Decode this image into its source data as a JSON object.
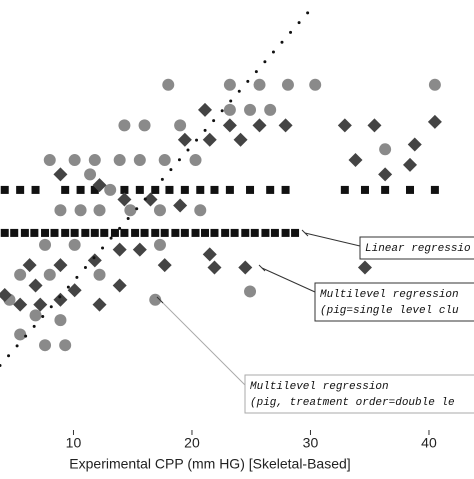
{
  "chart_data": {
    "type": "scatter",
    "xlabel": "Experimental CPP (mm HG) [Skeletal-Based]",
    "xlim": [
      3.8,
      43.8
    ],
    "xticks": [
      10,
      20,
      30,
      40
    ],
    "ylim": [
      0,
      36
    ],
    "series": [
      {
        "marker": "square",
        "color": "#111111",
        "x": [
          4.2,
          5.5,
          6.8,
          9.3,
          10.6,
          11.8,
          13.1,
          14.3,
          15.6,
          16.9,
          18.1,
          19.4,
          20.7,
          21.9,
          23.2,
          24.9,
          26.6,
          27.9,
          32.9,
          34.6,
          36.3,
          38.4,
          40.5,
          4.2,
          5.0,
          5.9,
          6.7,
          7.6,
          8.4,
          9.3,
          10.1,
          11.0,
          11.8,
          12.6,
          13.5,
          14.3,
          15.2,
          16.0,
          16.9,
          17.7,
          18.6,
          19.4,
          20.3,
          21.1,
          21.9,
          22.8,
          23.6,
          24.5,
          25.3,
          26.2,
          27.0,
          27.9,
          28.7
        ],
        "values": [
          20.1,
          20.1,
          20.1,
          20.1,
          20.1,
          20.1,
          20.1,
          20.1,
          20.1,
          20.1,
          20.1,
          20.1,
          20.1,
          20.1,
          20.1,
          20.1,
          20.1,
          20.1,
          20.1,
          20.1,
          20.1,
          20.1,
          20.1,
          16.5,
          16.5,
          16.5,
          16.5,
          16.5,
          16.5,
          16.5,
          16.5,
          16.5,
          16.5,
          16.5,
          16.5,
          16.5,
          16.5,
          16.5,
          16.5,
          16.5,
          16.5,
          16.5,
          16.5,
          16.5,
          16.5,
          16.5,
          16.5,
          16.5,
          16.5,
          16.5,
          16.5,
          16.5,
          16.5
        ]
      },
      {
        "marker": "circle",
        "color": "#8a8a8a",
        "x": [
          18.0,
          23.2,
          25.7,
          28.1,
          30.4,
          40.5,
          14.3,
          16.0,
          19.0,
          23.2,
          24.9,
          26.6,
          8.0,
          10.1,
          11.8,
          13.9,
          15.6,
          17.7,
          20.3,
          11.4,
          13.1,
          8.9,
          10.6,
          12.2,
          14.8,
          17.3,
          20.7,
          7.6,
          10.1,
          17.3,
          5.5,
          8.0,
          12.2,
          4.6,
          6.8,
          8.9,
          5.5,
          7.6,
          9.3,
          16.9,
          24.9,
          36.3
        ],
        "values": [
          28.9,
          28.9,
          28.9,
          28.9,
          28.9,
          28.9,
          25.5,
          25.5,
          25.5,
          26.8,
          26.8,
          26.8,
          22.6,
          22.6,
          22.6,
          22.6,
          22.6,
          22.6,
          22.6,
          21.4,
          20.1,
          18.4,
          18.4,
          18.4,
          18.4,
          18.4,
          18.4,
          15.5,
          15.5,
          15.5,
          13.0,
          13.0,
          13.0,
          10.9,
          9.6,
          9.2,
          8.0,
          7.1,
          7.1,
          10.9,
          11.6,
          23.5
        ]
      },
      {
        "marker": "diamond",
        "color": "#444444",
        "x": [
          23.2,
          25.7,
          27.9,
          32.9,
          35.4,
          40.5,
          21.1,
          19.4,
          21.5,
          24.1,
          33.8,
          38.4,
          36.3,
          38.8,
          8.9,
          12.2,
          14.3,
          16.5,
          19.0,
          11.8,
          13.9,
          15.6,
          17.7,
          21.9,
          24.5,
          21.5,
          6.3,
          8.9,
          6.8,
          4.2,
          8.9,
          5.5,
          7.2,
          12.2,
          10.1,
          34.6,
          13.9
        ],
        "values": [
          25.5,
          25.5,
          25.5,
          25.5,
          25.5,
          25.8,
          26.8,
          24.3,
          24.3,
          24.3,
          22.6,
          22.2,
          21.4,
          23.9,
          21.4,
          20.5,
          19.3,
          19.3,
          18.8,
          14.2,
          15.1,
          15.1,
          13.8,
          13.6,
          13.6,
          14.7,
          13.8,
          13.8,
          12.1,
          11.3,
          10.9,
          10.5,
          10.5,
          10.5,
          11.7,
          13.6,
          12.1
        ]
      },
      {
        "marker": "dotted-line",
        "color": "#111111",
        "x": [
          3.8,
          30.0
        ],
        "values": [
          5.4,
          35.2
        ]
      }
    ],
    "annotations": [
      {
        "lines": [
          "Linear regressio"
        ]
      },
      {
        "lines": [
          "Multilevel regression",
          "(pig=single level clu"
        ]
      },
      {
        "lines": [
          "Multilevel regression",
          "(pig, treatment order=double le"
        ]
      }
    ]
  }
}
